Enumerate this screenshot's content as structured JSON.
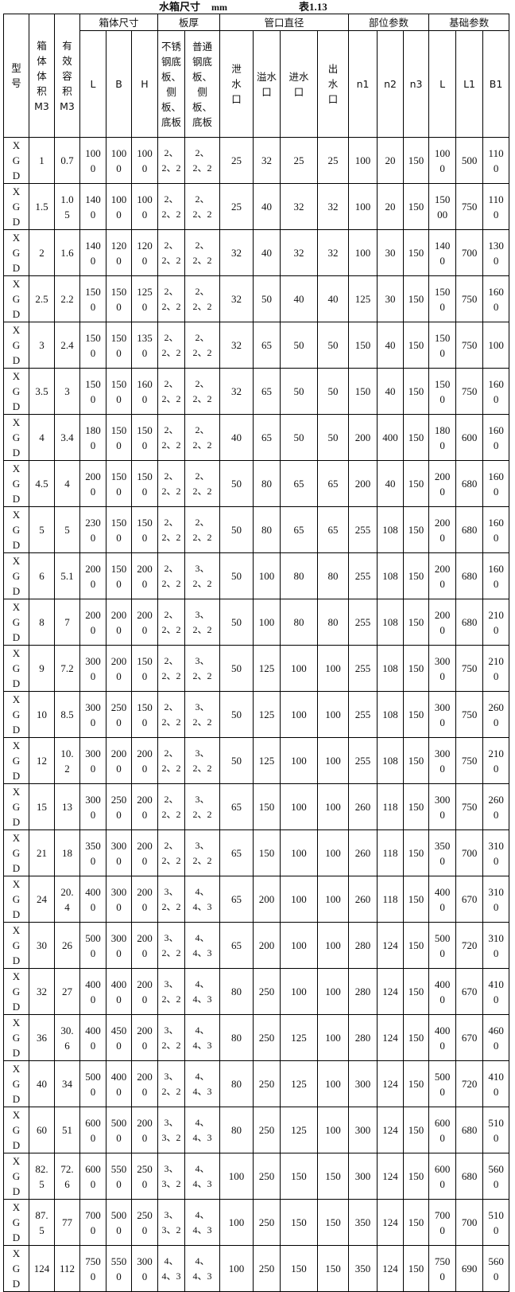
{
  "title": {
    "name": "水箱尺寸",
    "unit": "mm",
    "table_no": "表1.13"
  },
  "header": {
    "model": "型号",
    "volume": "箱体体积M3",
    "effective": "有效容积M3",
    "groups": {
      "box": "箱体尺寸",
      "plate": "板厚",
      "pipe": "管口直径",
      "part": "部位参数",
      "base": "基础参数"
    },
    "sub": {
      "box": [
        "L",
        "B",
        "H"
      ],
      "plate": [
        "不锈钢底板、侧板、底板",
        "普通钢底板、侧板、底板"
      ],
      "pipe": [
        "泄水口",
        "溢水口",
        "进水口",
        "出水口"
      ],
      "part": [
        "n1",
        "n2",
        "n3"
      ],
      "base": [
        "L",
        "L1",
        "B1"
      ]
    }
  },
  "rows": [
    [
      "XGD",
      "1",
      "0.7",
      "1000",
      "1000",
      "1000",
      "2、2、2",
      "2、2、2",
      "25",
      "32",
      "25",
      "25",
      "100",
      "20",
      "150",
      "1000",
      "500",
      "1100"
    ],
    [
      "XGD",
      "1.5",
      "1.05",
      "1400",
      "1000",
      "1000",
      "2、2、2",
      "2、2、2",
      "25",
      "40",
      "32",
      "32",
      "100",
      "20",
      "150",
      "15000",
      "750",
      "1100"
    ],
    [
      "XGD",
      "2",
      "1.6",
      "1400",
      "1200",
      "1200",
      "2、2、2",
      "2、2、2",
      "32",
      "40",
      "32",
      "32",
      "100",
      "30",
      "150",
      "1400",
      "700",
      "1300"
    ],
    [
      "XGD",
      "2.5",
      "2.2",
      "1500",
      "1500",
      "1250",
      "2、2、2",
      "2、2、2",
      "32",
      "50",
      "40",
      "40",
      "125",
      "30",
      "150",
      "1500",
      "750",
      "1600"
    ],
    [
      "XGD",
      "3",
      "2.4",
      "1500",
      "1500",
      "1350",
      "2、2、2",
      "2、2、2",
      "32",
      "65",
      "50",
      "50",
      "150",
      "40",
      "150",
      "1500",
      "750",
      "100"
    ],
    [
      "XGD",
      "3.5",
      "3",
      "1500",
      "1500",
      "1600",
      "2、2、2",
      "2、2、2",
      "32",
      "65",
      "50",
      "50",
      "150",
      "40",
      "150",
      "1500",
      "750",
      "1600"
    ],
    [
      "XGD",
      "4",
      "3.4",
      "1800",
      "1500",
      "1500",
      "2、2、2",
      "2、2、2",
      "40",
      "65",
      "50",
      "50",
      "200",
      "400",
      "150",
      "1800",
      "600",
      "1600"
    ],
    [
      "XGD",
      "4.5",
      "4",
      "2000",
      "1500",
      "1500",
      "2、2、2",
      "2、2、2",
      "50",
      "80",
      "65",
      "65",
      "200",
      "40",
      "150",
      "2000",
      "680",
      "1600"
    ],
    [
      "XGD",
      "5",
      "5",
      "2300",
      "1500",
      "1500",
      "2、2、2",
      "2、2、2",
      "50",
      "80",
      "65",
      "65",
      "255",
      "108",
      "150",
      "2000",
      "680",
      "1600"
    ],
    [
      "XGD",
      "6",
      "5.1",
      "2000",
      "1500",
      "2000",
      "2、2、2",
      "3、2、2",
      "50",
      "100",
      "80",
      "80",
      "255",
      "108",
      "150",
      "2000",
      "680",
      "1600"
    ],
    [
      "XGD",
      "8",
      "7",
      "2000",
      "2000",
      "2000",
      "2、2、2",
      "3、2、2",
      "50",
      "100",
      "80",
      "80",
      "255",
      "108",
      "150",
      "2000",
      "680",
      "2100"
    ],
    [
      "XGD",
      "9",
      "7.2",
      "3000",
      "2000",
      "1500",
      "2、2、2",
      "3、2、2",
      "50",
      "125",
      "100",
      "100",
      "255",
      "108",
      "150",
      "3000",
      "750",
      "2100"
    ],
    [
      "XGD",
      "10",
      "8.5",
      "3000",
      "2500",
      "1500",
      "2、2、2",
      "3、2、2",
      "50",
      "125",
      "100",
      "100",
      "255",
      "108",
      "150",
      "3000",
      "750",
      "2600"
    ],
    [
      "XGD",
      "12",
      "10.2",
      "3000",
      "2000",
      "2000",
      "2、2、2",
      "3、2、2",
      "50",
      "125",
      "100",
      "100",
      "255",
      "108",
      "150",
      "3000",
      "750",
      "2100"
    ],
    [
      "XGD",
      "15",
      "13",
      "3000",
      "2500",
      "2000",
      "2、2、2",
      "3、2、2",
      "65",
      "150",
      "100",
      "100",
      "260",
      "118",
      "150",
      "3000",
      "750",
      "2600"
    ],
    [
      "XGD",
      "21",
      "18",
      "3500",
      "3000",
      "2000",
      "2、2、2",
      "3、2、2",
      "65",
      "150",
      "100",
      "100",
      "260",
      "118",
      "150",
      "3500",
      "700",
      "3100"
    ],
    [
      "XGD",
      "24",
      "20.4",
      "4000",
      "3000",
      "2000",
      "3、2、2",
      "4、4、3",
      "65",
      "200",
      "100",
      "100",
      "260",
      "118",
      "150",
      "4000",
      "670",
      "3100"
    ],
    [
      "XGD",
      "30",
      "26",
      "5000",
      "3000",
      "2000",
      "3、2、2",
      "4、4、3",
      "65",
      "200",
      "100",
      "100",
      "280",
      "124",
      "150",
      "5000",
      "720",
      "3100"
    ],
    [
      "XGD",
      "32",
      "27",
      "4000",
      "4000",
      "2000",
      "3、2、2",
      "4、4、3",
      "80",
      "250",
      "100",
      "100",
      "280",
      "124",
      "150",
      "4000",
      "670",
      "4100"
    ],
    [
      "XGD",
      "36",
      "30.6",
      "4000",
      "4500",
      "2000",
      "3、2、2",
      "4、4、3",
      "80",
      "250",
      "125",
      "100",
      "280",
      "124",
      "150",
      "4000",
      "670",
      "4600"
    ],
    [
      "XGD",
      "40",
      "34",
      "5000",
      "4000",
      "2000",
      "3、2、2",
      "4、4、3",
      "80",
      "250",
      "125",
      "100",
      "300",
      "124",
      "150",
      "5000",
      "720",
      "4100"
    ],
    [
      "XGD",
      "60",
      "51",
      "6000",
      "5000",
      "2000",
      "3、3、2",
      "4、4、3",
      "80",
      "250",
      "125",
      "100",
      "300",
      "124",
      "150",
      "6000",
      "680",
      "5100"
    ],
    [
      "XGD",
      "82.5",
      "72.6",
      "6000",
      "5500",
      "2500",
      "3、3、2",
      "4、4、3",
      "100",
      "250",
      "150",
      "150",
      "300",
      "124",
      "150",
      "6000",
      "680",
      "5600"
    ],
    [
      "XGD",
      "87.5",
      "77",
      "7000",
      "5000",
      "2500",
      "3、3、2",
      "4、4、3",
      "100",
      "250",
      "150",
      "150",
      "350",
      "124",
      "150",
      "7000",
      "700",
      "5100"
    ],
    [
      "XGD",
      "124",
      "112",
      "7500",
      "5500",
      "3000",
      "4、4、3",
      "4、4、3",
      "100",
      "250",
      "150",
      "150",
      "350",
      "124",
      "150",
      "7500",
      "690",
      "5600"
    ]
  ]
}
